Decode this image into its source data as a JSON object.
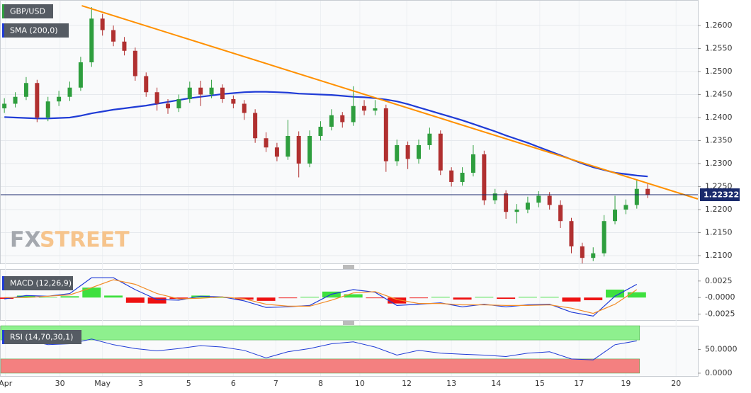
{
  "chart_data": [
    {
      "type": "candlestick",
      "title": "GBP/USD",
      "watermark": [
        "FX",
        "STREET"
      ],
      "x": [
        0,
        1,
        2,
        3,
        4,
        5,
        6,
        7,
        8,
        9,
        10,
        11,
        12,
        13,
        14,
        15,
        16,
        17,
        18,
        19,
        20,
        21,
        22,
        23,
        24,
        25,
        26,
        27,
        28,
        29,
        30,
        31,
        32,
        33,
        34,
        35,
        36,
        37,
        38,
        39,
        40,
        41,
        42,
        43,
        44,
        45,
        46,
        47,
        48,
        49,
        50,
        51,
        52,
        53,
        54,
        55,
        56,
        57,
        58,
        59
      ],
      "open": [
        1.242,
        1.243,
        1.2445,
        1.2475,
        1.24,
        1.2435,
        1.2445,
        1.2465,
        1.252,
        1.2615,
        1.259,
        1.2565,
        1.2545,
        1.249,
        1.2455,
        1.243,
        1.242,
        1.244,
        1.2465,
        1.245,
        1.2465,
        1.244,
        1.243,
        1.241,
        1.2355,
        1.2335,
        1.2315,
        1.236,
        1.23,
        1.236,
        1.238,
        1.2405,
        1.239,
        1.2425,
        1.2415,
        1.242,
        1.2305,
        1.234,
        1.231,
        1.234,
        1.2365,
        1.2285,
        1.226,
        1.228,
        1.232,
        1.222,
        1.2235,
        1.2195,
        1.22,
        1.2215,
        1.223,
        1.221,
        1.2175,
        1.212,
        1.2095,
        1.2105,
        1.2175,
        1.22,
        1.221,
        1.2245
      ],
      "high": [
        1.2442,
        1.2455,
        1.2488,
        1.2482,
        1.2445,
        1.2458,
        1.2478,
        1.2532,
        1.264,
        1.2625,
        1.26,
        1.2575,
        1.2552,
        1.2498,
        1.2465,
        1.244,
        1.245,
        1.2478,
        1.248,
        1.2482,
        1.2472,
        1.2448,
        1.2438,
        1.2418,
        1.2368,
        1.2345,
        1.2395,
        1.237,
        1.2372,
        1.2392,
        1.2418,
        1.2412,
        1.2468,
        1.2438,
        1.2438,
        1.2428,
        1.2352,
        1.2348,
        1.2352,
        1.2378,
        1.2372,
        1.2292,
        1.2292,
        1.234,
        1.2328,
        1.2245,
        1.2242,
        1.2212,
        1.2228,
        1.224,
        1.2238,
        1.222,
        1.2182,
        1.2128,
        1.2118,
        1.2188,
        1.223,
        1.2222,
        1.2265,
        1.2258
      ],
      "low": [
        1.241,
        1.2422,
        1.2438,
        1.239,
        1.2392,
        1.2425,
        1.2436,
        1.2458,
        1.251,
        1.2578,
        1.2555,
        1.2535,
        1.248,
        1.2445,
        1.2415,
        1.2408,
        1.2412,
        1.2432,
        1.2425,
        1.2442,
        1.2432,
        1.242,
        1.2395,
        1.2345,
        1.2325,
        1.2305,
        1.2308,
        1.227,
        1.2292,
        1.235,
        1.2372,
        1.2378,
        1.2382,
        1.2405,
        1.2405,
        1.2282,
        1.2295,
        1.2288,
        1.23,
        1.233,
        1.2275,
        1.225,
        1.2252,
        1.2272,
        1.221,
        1.2212,
        1.218,
        1.217,
        1.2192,
        1.2205,
        1.22,
        1.216,
        1.2105,
        1.2083,
        1.2088,
        1.2098,
        1.2168,
        1.219,
        1.2202,
        1.2225
      ],
      "close": [
        1.243,
        1.2445,
        1.2475,
        1.24,
        1.2435,
        1.2445,
        1.2465,
        1.252,
        1.2615,
        1.259,
        1.2565,
        1.2545,
        1.249,
        1.2455,
        1.243,
        1.242,
        1.244,
        1.2465,
        1.245,
        1.2465,
        1.244,
        1.243,
        1.241,
        1.2355,
        1.2335,
        1.2315,
        1.236,
        1.23,
        1.236,
        1.238,
        1.2405,
        1.239,
        1.2425,
        1.2415,
        1.242,
        1.2305,
        1.234,
        1.231,
        1.234,
        1.2365,
        1.2285,
        1.226,
        1.228,
        1.232,
        1.222,
        1.2235,
        1.2195,
        1.22,
        1.2215,
        1.223,
        1.221,
        1.2175,
        1.212,
        1.2095,
        1.2105,
        1.2175,
        1.22,
        1.221,
        1.2245,
        1.2232
      ],
      "up_color": "#2e9e3e",
      "down_color": "#b03030",
      "overlays": [
        {
          "name": "SMA (200,0)",
          "color": "#1f3bd6",
          "values": [
            1.2401,
            1.24,
            1.2399,
            1.2398,
            1.2398,
            1.2399,
            1.24,
            1.2404,
            1.2409,
            1.2413,
            1.2417,
            1.242,
            1.2423,
            1.2426,
            1.243,
            1.2434,
            1.2438,
            1.2442,
            1.2445,
            1.2448,
            1.2451,
            1.2453,
            1.2455,
            1.2456,
            1.2456,
            1.2455,
            1.2454,
            1.2452,
            1.2451,
            1.245,
            1.2449,
            1.2447,
            1.2445,
            1.2444,
            1.2442,
            1.2439,
            1.2435,
            1.2429,
            1.2422,
            1.2415,
            1.2408,
            1.2401,
            1.2394,
            1.2386,
            1.2378,
            1.237,
            1.2361,
            1.2353,
            1.2345,
            1.2336,
            1.2327,
            1.2318,
            1.2309,
            1.23,
            1.2292,
            1.2286,
            1.228,
            1.2277,
            1.2274,
            1.2272
          ]
        }
      ],
      "trendline": {
        "x": [
          7.1,
          63.6
        ],
        "y": [
          1.2643,
          1.2223
        ],
        "color": "#ff9000"
      },
      "last_price": 1.22322,
      "xlim": [
        -0.4,
        63.6
      ],
      "xticks": [
        {
          "value": 0.1,
          "label": "Apr"
        },
        {
          "value": 5.1,
          "label": "30"
        },
        {
          "value": 9.0,
          "label": "May"
        },
        {
          "value": 12.5,
          "label": "3"
        },
        {
          "value": 16.9,
          "label": "5"
        },
        {
          "value": 21.0,
          "label": "6"
        },
        {
          "value": 24.9,
          "label": "7"
        },
        {
          "value": 29.0,
          "label": "8"
        },
        {
          "value": 32.6,
          "label": "10"
        },
        {
          "value": 36.9,
          "label": "12"
        },
        {
          "value": 41.0,
          "label": "13"
        },
        {
          "value": 45.1,
          "label": "14"
        },
        {
          "value": 49.1,
          "label": "15"
        },
        {
          "value": 52.7,
          "label": "17"
        },
        {
          "value": 57.0,
          "label": "19"
        },
        {
          "value": 61.6,
          "label": "20"
        }
      ],
      "ylim": [
        1.2083,
        1.26554
      ],
      "yticks": [
        {
          "value": 1.21,
          "label": "1.2100"
        },
        {
          "value": 1.215,
          "label": "1.2150"
        },
        {
          "value": 1.22,
          "label": "1.2200"
        },
        {
          "value": 1.225,
          "label": "1.2250"
        },
        {
          "value": 1.23,
          "label": "1.2300"
        },
        {
          "value": 1.235,
          "label": "1.2350"
        },
        {
          "value": 1.24,
          "label": "1.2400"
        },
        {
          "value": 1.245,
          "label": "1.2450"
        },
        {
          "value": 1.25,
          "label": "1.2500"
        },
        {
          "value": 1.255,
          "label": "1.2550"
        },
        {
          "value": 1.26,
          "label": "1.2600"
        }
      ],
      "grid": true
    },
    {
      "type": "macd",
      "title": "MACD (12,26,9)",
      "x": [
        0,
        2,
        4,
        6,
        8,
        10,
        12,
        14,
        16,
        18,
        20,
        22,
        24,
        26,
        28,
        30,
        32,
        34,
        36,
        38,
        40,
        42,
        44,
        46,
        48,
        50,
        52,
        54,
        56,
        58
      ],
      "histogram": {
        "up_color": "#3ee03e",
        "down_color": "#ee1111",
        "values": [
          -0.0002,
          0.0003,
          0.0,
          0.0002,
          0.0015,
          0.0003,
          -0.0008,
          -0.0009,
          -0.0002,
          0.0003,
          0.0,
          -0.0003,
          -0.0005,
          -0.0001,
          0.0001,
          0.0009,
          0.0005,
          -0.0001,
          -0.0009,
          -0.0001,
          0.0001,
          -0.0003,
          0.0001,
          -0.0002,
          0.0001,
          0.0001,
          -0.0006,
          -0.0004,
          0.0012,
          0.0008
        ]
      },
      "series": [
        {
          "color": "#1f3bd6",
          "values": [
            -0.0002,
            0.0003,
            0.0002,
            0.0006,
            0.003,
            0.003,
            0.0012,
            -0.0003,
            -0.0004,
            0.0002,
            0.0001,
            -0.0005,
            -0.0015,
            -0.0014,
            -0.0012,
            0.0005,
            0.0012,
            0.0008,
            -0.0012,
            -0.001,
            -0.0008,
            -0.0014,
            -0.001,
            -0.0014,
            -0.0011,
            -0.001,
            -0.0022,
            -0.0028,
            0.0002,
            0.002
          ]
        },
        {
          "color": "#f28c28",
          "values": [
            0.0,
            0.0,
            0.0002,
            0.0004,
            0.0015,
            0.0027,
            0.002,
            0.0006,
            -0.0002,
            -0.0001,
            0.0001,
            -0.0002,
            -0.001,
            -0.0013,
            -0.0013,
            -0.0004,
            0.0007,
            0.0009,
            -0.0003,
            -0.0009,
            -0.0009,
            -0.0011,
            -0.0011,
            -0.0012,
            -0.0012,
            -0.0011,
            -0.0016,
            -0.0024,
            -0.001,
            0.0012
          ]
        }
      ],
      "xlim": [
        -0.4,
        63.6
      ],
      "ylim": [
        -0.0034,
        0.0043
      ],
      "yticks": [
        -0.0025,
        {
          "value": 0,
          "label": "-0.0000"
        },
        0.0025
      ]
    },
    {
      "type": "rsi",
      "title": "RSI (14,70,30,1)",
      "x": [
        0,
        2,
        4,
        6,
        8,
        10,
        12,
        14,
        16,
        18,
        20,
        22,
        24,
        26,
        28,
        30,
        32,
        34,
        36,
        38,
        40,
        42,
        44,
        46,
        48,
        50,
        52,
        54,
        56,
        58
      ],
      "values": [
        64,
        70,
        60,
        62,
        72,
        60,
        52,
        47,
        52,
        58,
        55,
        48,
        32,
        45,
        52,
        62,
        66,
        55,
        38,
        48,
        42,
        40,
        38,
        35,
        42,
        45,
        30,
        28,
        60,
        68
      ],
      "color": "#1f3bd6",
      "bands": [
        {
          "range": [
            70,
            100
          ],
          "color": "#8ef08e"
        },
        {
          "range": [
            0,
            30
          ],
          "color": "#f48080"
        }
      ],
      "xlim": [
        -0.4,
        63.6
      ],
      "ylim": [
        -6,
        100
      ],
      "yticks": [
        {
          "value": 0,
          "label": "0.0000"
        },
        {
          "value": 50,
          "label": "50.0000"
        }
      ]
    }
  ]
}
